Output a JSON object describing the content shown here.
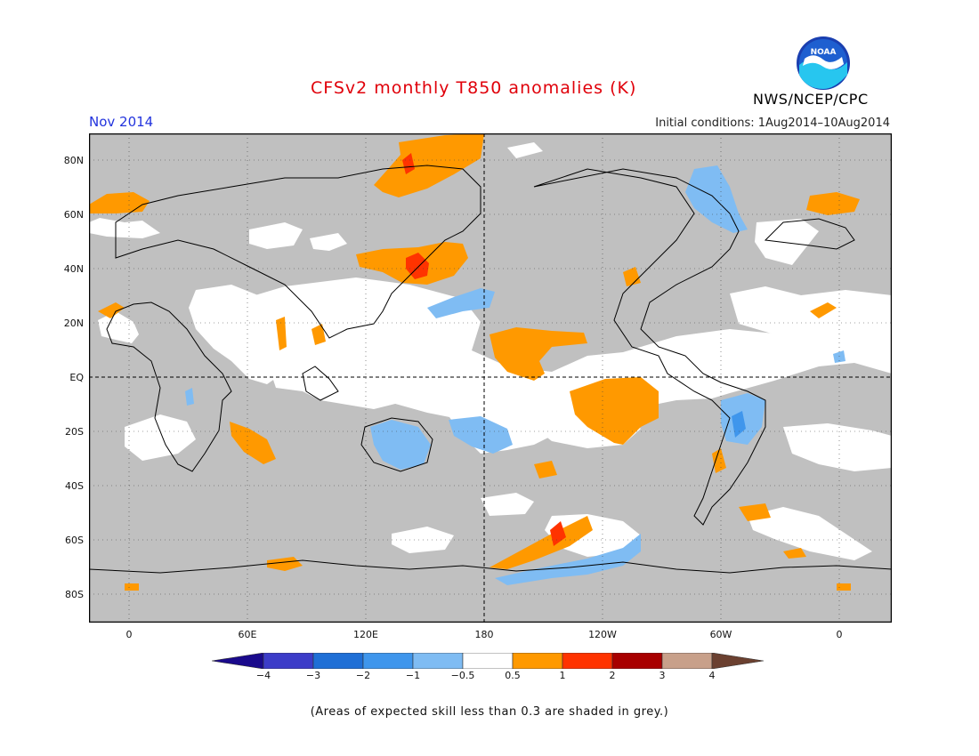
{
  "header": {
    "title": "CFSv2 monthly T850 anomalies (K)",
    "period": "Nov 2014",
    "initial_conditions": "Initial conditions: 1Aug2014–10Aug2014",
    "agency": "NWS/NCEP/CPC",
    "logo_text": "NOAA"
  },
  "map": {
    "lat_labels": [
      "80N",
      "60N",
      "40N",
      "20N",
      "EQ",
      "20S",
      "40S",
      "60S",
      "80S"
    ],
    "lon_labels": [
      "0",
      "60E",
      "120E",
      "180",
      "120W",
      "60W",
      "0"
    ]
  },
  "colorbar": {
    "labels": [
      "−4",
      "−3",
      "−2",
      "−1",
      "−0.5",
      "0.5",
      "1",
      "2",
      "3",
      "4"
    ],
    "colors": [
      "#1a0a8c",
      "#3c3cc8",
      "#1f6fd6",
      "#3f96ec",
      "#7fbcf3",
      "#ffffff",
      "#ff9900",
      "#ff3300",
      "#a80000",
      "#c8a08a",
      "#6b4030"
    ]
  },
  "footnote": "(Areas of expected skill less than 0.3 are shaded in grey.)"
}
